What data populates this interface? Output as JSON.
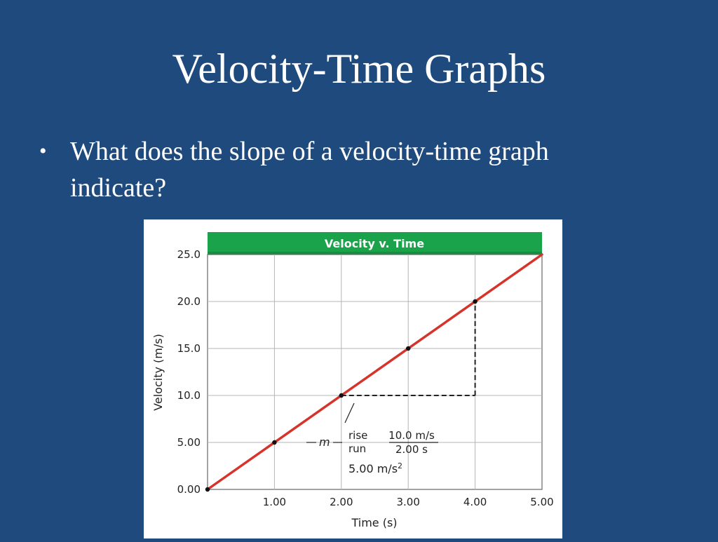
{
  "slide": {
    "title": "Velocity-Time Graphs",
    "bullet_symbol": "•",
    "bullet_text": "What does the slope of a velocity-time graph indicate?"
  },
  "colors": {
    "background": "#1f4a7d",
    "header_bar": "#1aa34a",
    "line": "#d6342a",
    "grid": "#b5b5b5",
    "dashed": "#222222"
  },
  "chart_data": {
    "type": "line",
    "title": "Velocity v. Time",
    "xlabel": "Time (s)",
    "ylabel": "Velocity (m/s)",
    "xlim": [
      0,
      5
    ],
    "ylim": [
      0,
      25
    ],
    "grid": true,
    "x_ticks": [
      1,
      2,
      3,
      4,
      5
    ],
    "x_tick_labels": [
      "1.00",
      "2.00",
      "3.00",
      "4.00",
      "5.00"
    ],
    "y_ticks": [
      0,
      5,
      10,
      15,
      20,
      25
    ],
    "y_tick_labels": [
      "0.00",
      "5.00",
      "10.0",
      "15.0",
      "20.0",
      "25.0"
    ],
    "line": {
      "x": [
        0,
        5
      ],
      "y": [
        0,
        25
      ]
    },
    "points": {
      "x": [
        0,
        1,
        2,
        3,
        4
      ],
      "y": [
        0,
        5,
        10,
        15,
        20
      ]
    },
    "slope_triangle": {
      "x_start": 2,
      "x_end": 4,
      "y_start": 10,
      "y_end": 20
    },
    "annotation": {
      "m": "m",
      "rise": "rise",
      "run": "run",
      "numerator": "10.0 m/s",
      "denominator": "2.00 s",
      "result": "5.00 m/s",
      "result_exponent": "2"
    }
  }
}
